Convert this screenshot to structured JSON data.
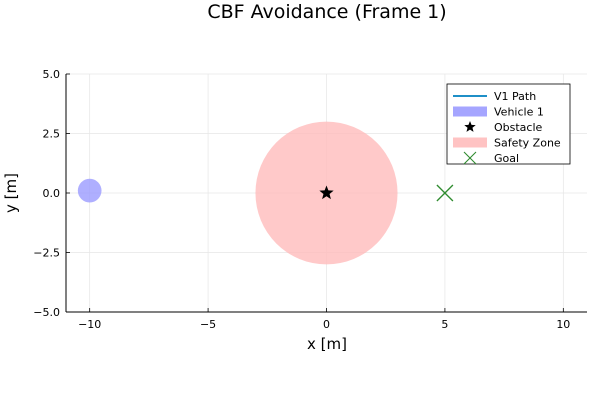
{
  "chart_data": {
    "type": "scatter",
    "title": "CBF Avoidance (Frame 1)",
    "xlabel": "x [m]",
    "ylabel": "y [m]",
    "xlim": [
      -11,
      11
    ],
    "ylim": [
      -5,
      5
    ],
    "x_ticks": [
      -10,
      -5,
      0,
      5,
      10
    ],
    "y_ticks": [
      -5.0,
      -2.5,
      0.0,
      2.5,
      5.0
    ],
    "x_tick_labels": [
      "−10",
      "−5",
      "0",
      "5",
      "10"
    ],
    "y_tick_labels": [
      "−5.0",
      "−2.5",
      "0.0",
      "2.5",
      "5.0"
    ],
    "grid": true,
    "legend_position": "top-right",
    "series": [
      {
        "name": "V1 Path",
        "kind": "line",
        "color": "#1f8fc7",
        "points": []
      },
      {
        "name": "Vehicle 1",
        "kind": "disk",
        "color": "#9b9bff",
        "center": [
          -10,
          0.1
        ],
        "radius": 0.5
      },
      {
        "name": "Obstacle",
        "kind": "star-marker",
        "color": "#000000",
        "point": [
          0,
          0
        ]
      },
      {
        "name": "Safety Zone",
        "kind": "disk",
        "color": "#ffbcbc",
        "center": [
          0,
          0
        ],
        "radius": 3.0
      },
      {
        "name": "Goal",
        "kind": "x-marker",
        "color": "#2e8b2e",
        "point": [
          5,
          0
        ]
      }
    ]
  }
}
